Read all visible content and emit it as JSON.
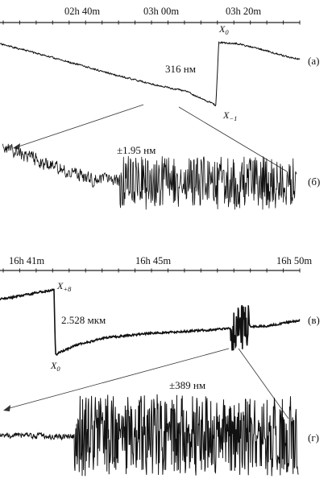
{
  "chart_data": [
    {
      "type": "line",
      "time_axis": {
        "tick_labels": [
          "02h 40m",
          "03h 00m",
          "03h 20m"
        ]
      },
      "panels": [
        {
          "label": "(а)",
          "step": {
            "value": "316 нм",
            "before": "X",
            "before_sub": "−1",
            "after": "X",
            "after_sub": "0"
          },
          "series": [
            {
              "points": [
                [
                  0,
                  0.1
                ],
                [
                  0.12,
                  0.22
                ],
                [
                  0.25,
                  0.36
                ],
                [
                  0.38,
                  0.5
                ],
                [
                  0.5,
                  0.62
                ],
                [
                  0.62,
                  0.72
                ],
                [
                  0.72,
                  0.9
                ],
                [
                  0.73,
                  0.08
                ],
                [
                  0.8,
                  0.1
                ],
                [
                  0.88,
                  0.18
                ],
                [
                  0.95,
                  0.26
                ],
                [
                  1,
                  0.3
                ]
              ],
              "noise": 0.015,
              "bursts": []
            }
          ]
        },
        {
          "label": "(б)",
          "amplitude": "±1.95 нм",
          "series": [
            {
              "points": [
                [
                  0,
                  0.08
                ],
                [
                  0.15,
                  0.3
                ],
                [
                  0.3,
                  0.5
                ],
                [
                  0.45,
                  0.55
                ],
                [
                  0.6,
                  0.55
                ],
                [
                  0.8,
                  0.55
                ],
                [
                  1,
                  0.55
                ]
              ],
              "noise": 0.12,
              "bursts": [
                [
                  0.4,
                  1,
                  0.35
                ]
              ]
            }
          ]
        }
      ]
    },
    {
      "type": "line",
      "time_axis": {
        "tick_labels": [
          "16h 41m",
          "16h 45m",
          "16h 50m"
        ]
      },
      "panels": [
        {
          "label": "(в)",
          "step": {
            "value": "2.528 мкм",
            "before": "X",
            "before_sub": "+8",
            "after": "X",
            "after_sub": "0"
          },
          "series": [
            {
              "points": [
                [
                  0,
                  0.18
                ],
                [
                  0.18,
                  0.05
                ],
                [
                  0.185,
                  0.9
                ],
                [
                  0.25,
                  0.78
                ],
                [
                  0.35,
                  0.68
                ],
                [
                  0.5,
                  0.62
                ],
                [
                  0.7,
                  0.58
                ],
                [
                  0.8,
                  0.55
                ],
                [
                  0.9,
                  0.52
                ],
                [
                  1,
                  0.45
                ]
              ],
              "noise": 0.018,
              "bursts": [
                [
                  0.77,
                  0.83,
                  0.3
                ]
              ]
            }
          ]
        },
        {
          "label": "(г)",
          "amplitude": "±389 нм",
          "series": [
            {
              "points": [
                [
                  0,
                  0.5
                ],
                [
                  0.2,
                  0.52
                ],
                [
                  0.4,
                  0.5
                ],
                [
                  0.6,
                  0.5
                ],
                [
                  0.8,
                  0.52
                ],
                [
                  1,
                  0.5
                ]
              ],
              "noise": 0.04,
              "bursts": [
                [
                  0.25,
                  1,
                  0.42
                ]
              ]
            }
          ]
        }
      ]
    }
  ]
}
